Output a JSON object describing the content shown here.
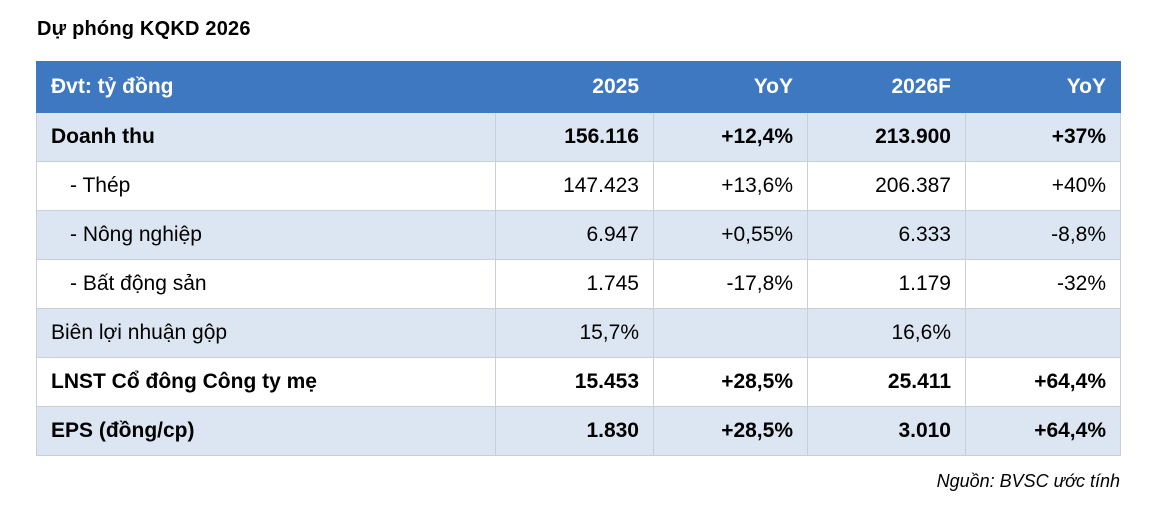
{
  "title": "Dự phóng KQKD 2026",
  "table": {
    "headers": [
      "Đvt: tỷ đồng",
      "2025",
      "YoY",
      "2026F",
      "YoY"
    ],
    "rows": [
      {
        "cells": [
          "Doanh thu",
          "156.116",
          "+12,4%",
          "213.900",
          "+37%"
        ],
        "bold": true,
        "shaded": true
      },
      {
        "cells": [
          "- Thép",
          "147.423",
          "+13,6%",
          "206.387",
          "+40%"
        ],
        "bold": false,
        "shaded": false
      },
      {
        "cells": [
          "- Nông nghiệp",
          "6.947",
          "+0,55%",
          "6.333",
          "-8,8%"
        ],
        "bold": false,
        "shaded": true
      },
      {
        "cells": [
          "- Bất động sản",
          "1.745",
          "-17,8%",
          "1.179",
          "-32%"
        ],
        "bold": false,
        "shaded": false
      },
      {
        "cells": [
          "Biên lợi nhuận gộp",
          "15,7%",
          "",
          "16,6%",
          ""
        ],
        "bold": false,
        "shaded": true
      },
      {
        "cells": [
          "LNST Cổ đông Công ty mẹ",
          "15.453",
          "+28,5%",
          "25.411",
          "+64,4%"
        ],
        "bold": true,
        "shaded": false
      },
      {
        "cells": [
          "EPS (đồng/cp)",
          "1.830",
          "+28,5%",
          "3.010",
          "+64,4%"
        ],
        "bold": true,
        "shaded": true
      }
    ]
  },
  "source": "Nguồn: BVSC ước tính",
  "colors": {
    "header_bg": "#3e78c0",
    "shade_bg": "#dce6f2",
    "border": "#c9cfd8"
  }
}
